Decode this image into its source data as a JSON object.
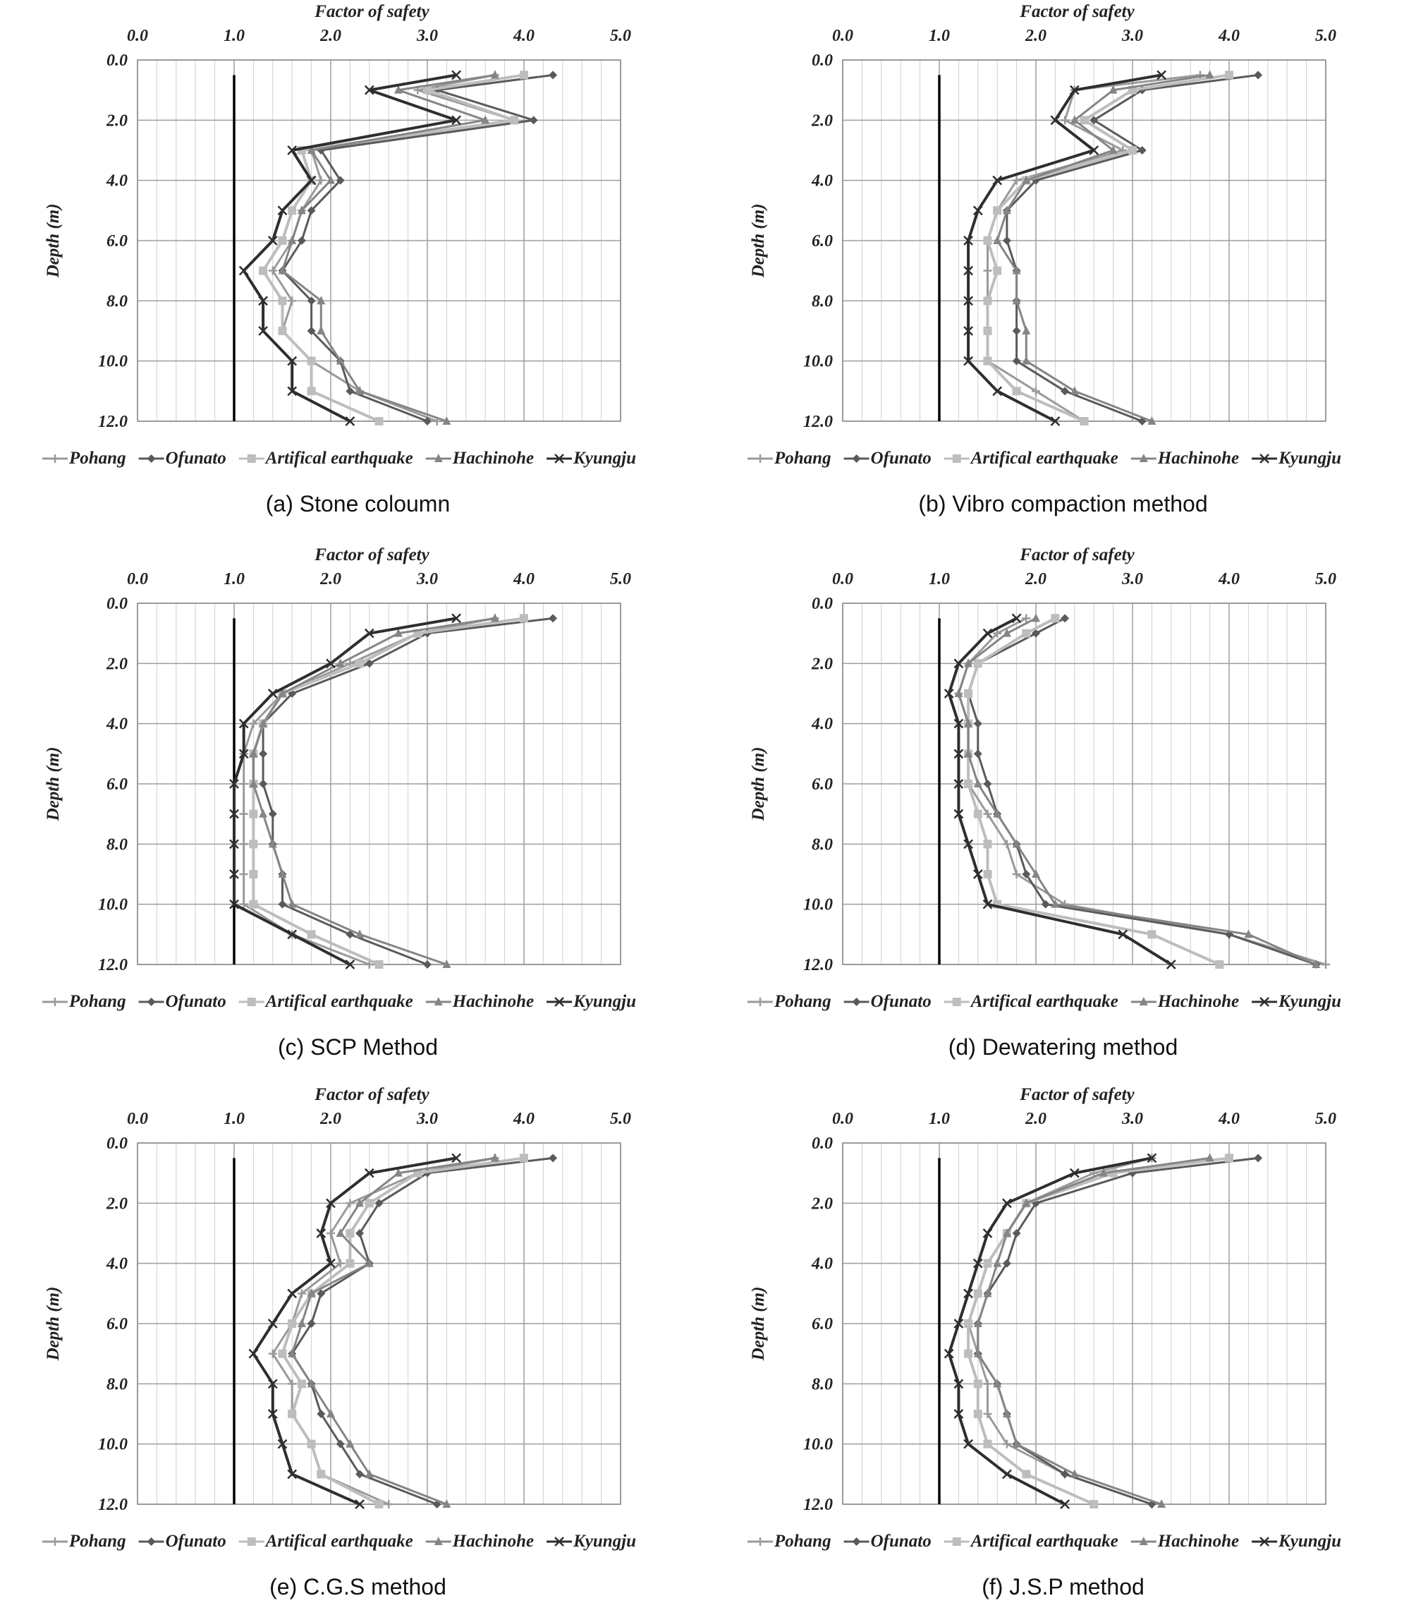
{
  "figure": {
    "series_styles": {
      "Pohang": {
        "color": "#9a9a9a",
        "marker": "cross",
        "width": 3
      },
      "Ofunato": {
        "color": "#5a5a5a",
        "marker": "diamond",
        "width": 3
      },
      "Artifical earthquake": {
        "color": "#bdbdbd",
        "marker": "square",
        "width": 4
      },
      "Hachinohe": {
        "color": "#858585",
        "marker": "triangle",
        "width": 3
      },
      "Kyungju": {
        "color": "#2e2e2e",
        "marker": "x",
        "width": 4
      }
    },
    "reference_line": {
      "fs": 1.0,
      "color": "#000000"
    }
  },
  "chart_data": [
    {
      "type": "line",
      "caption": "(a) Stone coloumn",
      "xlabel": "Factor of safety",
      "ylabel": "Depth (m)",
      "xlim": [
        0,
        5
      ],
      "ylim": [
        0,
        12
      ],
      "x_ticks": [
        "0.0",
        "1.0",
        "2.0",
        "3.0",
        "4.0",
        "5.0"
      ],
      "y_ticks": [
        "0.0",
        "2.0",
        "4.0",
        "6.0",
        "8.0",
        "10.0",
        "12.0"
      ],
      "legend": [
        "Pohang",
        "Ofunato",
        "Artifical earthquake",
        "Hachinohe",
        "Kyungju"
      ],
      "depth": [
        0.5,
        1,
        2,
        3,
        4,
        5,
        6,
        7,
        8,
        9,
        10,
        11,
        12
      ],
      "series": [
        {
          "name": "Pohang",
          "values": [
            3.7,
            2.9,
            3.9,
            1.8,
            1.9,
            1.7,
            1.6,
            1.4,
            1.6,
            1.5,
            1.8,
            2.3,
            3.1
          ]
        },
        {
          "name": "Ofunato",
          "values": [
            4.3,
            3.1,
            4.1,
            1.9,
            2.1,
            1.8,
            1.7,
            1.5,
            1.8,
            1.8,
            2.1,
            2.2,
            3.0
          ]
        },
        {
          "name": "Artifical earthquake",
          "values": [
            4.0,
            3.0,
            3.9,
            1.7,
            1.8,
            1.6,
            1.5,
            1.3,
            1.5,
            1.5,
            1.8,
            1.8,
            2.5
          ]
        },
        {
          "name": "Hachinohe",
          "values": [
            3.7,
            2.7,
            3.6,
            1.8,
            2.0,
            1.7,
            1.6,
            1.5,
            1.9,
            1.9,
            2.1,
            2.3,
            3.2
          ]
        },
        {
          "name": "Kyungju",
          "values": [
            3.3,
            2.4,
            3.3,
            1.6,
            1.8,
            1.5,
            1.4,
            1.1,
            1.3,
            1.3,
            1.6,
            1.6,
            2.2
          ]
        }
      ]
    },
    {
      "type": "line",
      "caption": "(b) Vibro compaction method",
      "xlabel": "Factor of safety",
      "ylabel": "Depth (m)",
      "xlim": [
        0,
        5
      ],
      "ylim": [
        0,
        12
      ],
      "x_ticks": [
        "0.0",
        "1.0",
        "2.0",
        "3.0",
        "4.0",
        "5.0"
      ],
      "y_ticks": [
        "0.0",
        "2.0",
        "4.0",
        "6.0",
        "8.0",
        "10.0",
        "12.0"
      ],
      "legend": [
        "Pohang",
        "Ofunato",
        "Artifical earthquake",
        "Hachinohe",
        "Kyungju"
      ],
      "depth": [
        0.5,
        1,
        2,
        3,
        4,
        5,
        6,
        7,
        8,
        9,
        10,
        11,
        12
      ],
      "series": [
        {
          "name": "Pohang",
          "values": [
            3.7,
            2.4,
            2.3,
            2.9,
            1.8,
            1.6,
            1.5,
            1.5,
            1.5,
            1.5,
            1.5,
            2.0,
            2.5
          ]
        },
        {
          "name": "Ofunato",
          "values": [
            4.3,
            3.1,
            2.6,
            3.1,
            2.0,
            1.7,
            1.7,
            1.8,
            1.8,
            1.8,
            1.8,
            2.3,
            3.1
          ]
        },
        {
          "name": "Artifical earthquake",
          "values": [
            4.0,
            3.0,
            2.5,
            3.0,
            1.9,
            1.6,
            1.5,
            1.6,
            1.5,
            1.5,
            1.5,
            1.8,
            2.5
          ]
        },
        {
          "name": "Hachinohe",
          "values": [
            3.8,
            2.8,
            2.4,
            2.8,
            1.9,
            1.7,
            1.6,
            1.8,
            1.8,
            1.9,
            1.9,
            2.4,
            3.2
          ]
        },
        {
          "name": "Kyungju",
          "values": [
            3.3,
            2.4,
            2.2,
            2.6,
            1.6,
            1.4,
            1.3,
            1.3,
            1.3,
            1.3,
            1.3,
            1.6,
            2.2
          ]
        }
      ]
    },
    {
      "type": "line",
      "caption": "(c) SCP Method",
      "xlabel": "Factor of safety",
      "ylabel": "Depth (m)",
      "xlim": [
        0,
        5
      ],
      "ylim": [
        0,
        12
      ],
      "x_ticks": [
        "0.0",
        "1.0",
        "2.0",
        "3.0",
        "4.0",
        "5.0"
      ],
      "y_ticks": [
        "0.0",
        "2.0",
        "4.0",
        "6.0",
        "8.0",
        "10.0",
        "12.0"
      ],
      "legend": [
        "Pohang",
        "Ofunato",
        "Artifical earthquake",
        "Hachinohe",
        "Kyungju"
      ],
      "depth": [
        0.5,
        1,
        2,
        3,
        4,
        5,
        6,
        7,
        8,
        9,
        10,
        11,
        12
      ],
      "series": [
        {
          "name": "Pohang",
          "values": [
            3.7,
            2.9,
            2.2,
            1.5,
            1.2,
            1.1,
            1.1,
            1.1,
            1.1,
            1.1,
            1.1,
            1.6,
            2.4
          ]
        },
        {
          "name": "Ofunato",
          "values": [
            4.3,
            3.0,
            2.4,
            1.6,
            1.3,
            1.3,
            1.3,
            1.4,
            1.4,
            1.5,
            1.5,
            2.2,
            3.0
          ]
        },
        {
          "name": "Artifical earthquake",
          "values": [
            4.0,
            2.9,
            2.3,
            1.5,
            1.3,
            1.2,
            1.2,
            1.2,
            1.2,
            1.2,
            1.2,
            1.8,
            2.5
          ]
        },
        {
          "name": "Hachinohe",
          "values": [
            3.7,
            2.7,
            2.1,
            1.5,
            1.3,
            1.2,
            1.2,
            1.3,
            1.4,
            1.5,
            1.6,
            2.3,
            3.2
          ]
        },
        {
          "name": "Kyungju",
          "values": [
            3.3,
            2.4,
            2.0,
            1.4,
            1.1,
            1.1,
            1.0,
            1.0,
            1.0,
            1.0,
            1.0,
            1.6,
            2.2
          ]
        }
      ]
    },
    {
      "type": "line",
      "caption": "(d) Dewatering method",
      "xlabel": "Factor of safety",
      "ylabel": "Depth (m)",
      "xlim": [
        0,
        5
      ],
      "ylim": [
        0,
        12
      ],
      "x_ticks": [
        "0.0",
        "1.0",
        "2.0",
        "3.0",
        "4.0",
        "5.0"
      ],
      "y_ticks": [
        "0.0",
        "2.0",
        "4.0",
        "6.0",
        "8.0",
        "10.0",
        "12.0"
      ],
      "legend": [
        "Pohang",
        "Ofunato",
        "Artifical earthquake",
        "Hachinohe",
        "Kyungju"
      ],
      "depth": [
        0.5,
        1,
        2,
        3,
        4,
        5,
        6,
        7,
        8,
        9,
        10,
        11,
        12
      ],
      "series": [
        {
          "name": "Pohang",
          "values": [
            1.9,
            1.6,
            1.3,
            1.2,
            1.3,
            1.3,
            1.3,
            1.5,
            1.7,
            1.8,
            2.3,
            4.0,
            5.0
          ]
        },
        {
          "name": "Ofunato",
          "values": [
            2.3,
            2.0,
            1.4,
            1.3,
            1.4,
            1.4,
            1.5,
            1.6,
            1.8,
            1.9,
            2.1,
            4.0,
            4.9
          ]
        },
        {
          "name": "Artifical earthquake",
          "values": [
            2.2,
            1.9,
            1.4,
            1.3,
            1.3,
            1.3,
            1.3,
            1.4,
            1.5,
            1.5,
            1.6,
            3.2,
            3.9
          ]
        },
        {
          "name": "Hachinohe",
          "values": [
            2.0,
            1.7,
            1.3,
            1.2,
            1.3,
            1.3,
            1.4,
            1.6,
            1.8,
            2.0,
            2.2,
            4.2,
            4.9
          ]
        },
        {
          "name": "Kyungju",
          "values": [
            1.8,
            1.5,
            1.2,
            1.1,
            1.2,
            1.2,
            1.2,
            1.2,
            1.3,
            1.4,
            1.5,
            2.9,
            3.4
          ]
        }
      ]
    },
    {
      "type": "line",
      "caption": "(e) C.G.S method",
      "xlabel": "Factor of safety",
      "ylabel": "Depth (m)",
      "xlim": [
        0,
        5
      ],
      "ylim": [
        0,
        12
      ],
      "x_ticks": [
        "0.0",
        "1.0",
        "2.0",
        "3.0",
        "4.0",
        "5.0"
      ],
      "y_ticks": [
        "0.0",
        "2.0",
        "4.0",
        "6.0",
        "8.0",
        "10.0",
        "12.0"
      ],
      "legend": [
        "Pohang",
        "Ofunato",
        "Artifical earthquake",
        "Hachinohe",
        "Kyungju"
      ],
      "depth": [
        0.5,
        1,
        2,
        3,
        4,
        5,
        6,
        7,
        8,
        9,
        10,
        11,
        12
      ],
      "series": [
        {
          "name": "Pohang",
          "values": [
            3.7,
            2.9,
            2.2,
            2.0,
            2.1,
            1.7,
            1.6,
            1.4,
            1.6,
            1.6,
            1.8,
            1.9,
            2.6
          ]
        },
        {
          "name": "Ofunato",
          "values": [
            4.3,
            3.0,
            2.5,
            2.3,
            2.4,
            1.9,
            1.8,
            1.6,
            1.8,
            1.9,
            2.1,
            2.3,
            3.1
          ]
        },
        {
          "name": "Artifical earthquake",
          "values": [
            4.0,
            2.9,
            2.4,
            2.2,
            2.2,
            1.8,
            1.6,
            1.5,
            1.7,
            1.6,
            1.8,
            1.9,
            2.5
          ]
        },
        {
          "name": "Hachinohe",
          "values": [
            3.7,
            2.7,
            2.3,
            2.1,
            2.4,
            1.8,
            1.7,
            1.6,
            1.8,
            2.0,
            2.2,
            2.4,
            3.2
          ]
        },
        {
          "name": "Kyungju",
          "values": [
            3.3,
            2.4,
            2.0,
            1.9,
            2.0,
            1.6,
            1.4,
            1.2,
            1.4,
            1.4,
            1.5,
            1.6,
            2.3
          ]
        }
      ]
    },
    {
      "type": "line",
      "caption": "(f) J.S.P method",
      "xlabel": "Factor of safety",
      "ylabel": "Depth (m)",
      "xlim": [
        0,
        5
      ],
      "ylim": [
        0,
        12
      ],
      "x_ticks": [
        "0.0",
        "1.0",
        "2.0",
        "3.0",
        "4.0",
        "5.0"
      ],
      "y_ticks": [
        "0.0",
        "2.0",
        "4.0",
        "6.0",
        "8.0",
        "10.0",
        "12.0"
      ],
      "legend": [
        "Pohang",
        "Ofunato",
        "Artifical earthquake",
        "Hachinohe",
        "Kyungju"
      ],
      "depth": [
        0.5,
        1,
        2,
        3,
        4,
        5,
        6,
        7,
        8,
        9,
        10,
        11,
        12
      ],
      "series": [
        {
          "name": "Pohang",
          "values": [
            3.2,
            2.6,
            1.9,
            1.7,
            1.5,
            1.4,
            1.3,
            1.4,
            1.5,
            1.5,
            1.7,
            2.3,
            3.2
          ]
        },
        {
          "name": "Ofunato",
          "values": [
            4.3,
            3.0,
            2.0,
            1.8,
            1.7,
            1.5,
            1.4,
            1.4,
            1.6,
            1.7,
            1.8,
            2.3,
            3.2
          ]
        },
        {
          "name": "Artifical earthquake",
          "values": [
            4.0,
            2.8,
            1.9,
            1.7,
            1.5,
            1.4,
            1.3,
            1.3,
            1.4,
            1.4,
            1.5,
            1.9,
            2.6
          ]
        },
        {
          "name": "Hachinohe",
          "values": [
            3.8,
            2.7,
            1.9,
            1.7,
            1.6,
            1.5,
            1.4,
            1.4,
            1.6,
            1.7,
            1.8,
            2.4,
            3.3
          ]
        },
        {
          "name": "Kyungju",
          "values": [
            3.2,
            2.4,
            1.7,
            1.5,
            1.4,
            1.3,
            1.2,
            1.1,
            1.2,
            1.2,
            1.3,
            1.7,
            2.3
          ]
        }
      ]
    }
  ]
}
